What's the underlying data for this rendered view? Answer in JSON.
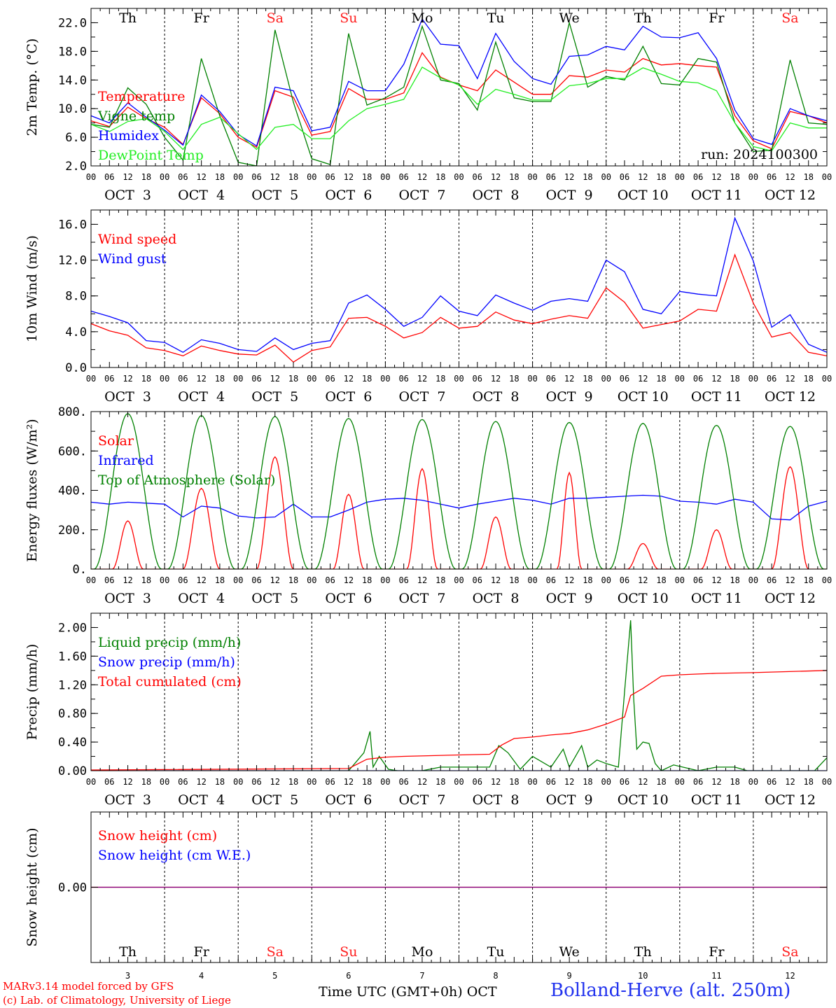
{
  "station": "Bolland-Herve (alt. 250m)",
  "credits": [
    "MARv3.14 model forced by GFS",
    "(c) Lab. of Climatology, University of Liege"
  ],
  "x_axis_title": "Time UTC (GMT+0h)",
  "month": "OCT",
  "run": "run: 2024100300",
  "days": [
    {
      "dow": "Th",
      "date": "OCT  3",
      "num": "3",
      "weekend": false
    },
    {
      "dow": "Fr",
      "date": "OCT  4",
      "num": "4",
      "weekend": false
    },
    {
      "dow": "Sa",
      "date": "OCT  5",
      "num": "5",
      "weekend": true
    },
    {
      "dow": "Su",
      "date": "OCT  6",
      "num": "6",
      "weekend": true
    },
    {
      "dow": "Mo",
      "date": "OCT  7",
      "num": "7",
      "weekend": false
    },
    {
      "dow": "Tu",
      "date": "OCT  8",
      "num": "8",
      "weekend": false
    },
    {
      "dow": "We",
      "date": "OCT  9",
      "num": "9",
      "weekend": false
    },
    {
      "dow": "Th",
      "date": "OCT 10",
      "num": "10",
      "weekend": false
    },
    {
      "dow": "Fr",
      "date": "OCT 11",
      "num": "11",
      "weekend": false
    },
    {
      "dow": "Sa",
      "date": "OCT 12",
      "num": "12",
      "weekend": true
    }
  ],
  "hour_ticks": [
    "00",
    "06",
    "12",
    "18"
  ],
  "colors": {
    "red": "#ff0000",
    "blue": "#0000ff",
    "dark_green": "#008000",
    "light_green": "#22ee22",
    "purple": "#800080",
    "weekend": "#ff2020"
  },
  "chart_data": [
    {
      "type": "line",
      "ylabel": "2m Temp. (°C)",
      "ylim": [
        2,
        24
      ],
      "yticks": [
        2,
        6,
        10,
        14,
        18,
        22
      ],
      "ytick_labels": [
        "2.0",
        "6.0",
        "10.0",
        "14.0",
        "18.0",
        "22.0"
      ],
      "x_hours": [
        0,
        6,
        12,
        18,
        24,
        30,
        36,
        42,
        48,
        54,
        60,
        66,
        72,
        78,
        84,
        90,
        96,
        102,
        108,
        114,
        120,
        126,
        132,
        138,
        144,
        150,
        156,
        162,
        168,
        174,
        180,
        186,
        192,
        198,
        204,
        210,
        216,
        222,
        228,
        234,
        240
      ],
      "series": [
        {
          "name": "Temperature",
          "color": "#ff0000",
          "values": [
            8.3,
            7.5,
            10.2,
            8.6,
            7.4,
            5.0,
            11.5,
            9.3,
            6.0,
            4.6,
            12.5,
            11.6,
            6.3,
            6.8,
            12.8,
            11.3,
            11.3,
            12.2,
            17.8,
            14.4,
            13.3,
            12.5,
            15.4,
            13.7,
            12.0,
            12.0,
            14.6,
            14.4,
            15.4,
            15.1,
            17.0,
            16.1,
            16.3,
            16.0,
            15.8,
            9.0,
            5.5,
            4.4,
            9.6,
            9.0,
            8.0
          ]
        },
        {
          "name": "Vigne temp",
          "color": "#008000",
          "values": [
            7.8,
            7.4,
            12.9,
            10.6,
            6.0,
            2.8,
            17.0,
            9.0,
            2.5,
            2.0,
            21.0,
            10.9,
            3.0,
            2.2,
            20.5,
            10.5,
            11.5,
            13.0,
            21.5,
            14.0,
            13.5,
            9.8,
            19.3,
            11.5,
            11.0,
            11.0,
            22.0,
            13.0,
            14.5,
            14.0,
            18.7,
            13.5,
            13.3,
            17.0,
            16.5,
            8.0,
            4.0,
            4.2,
            16.8,
            8.0,
            7.8
          ]
        },
        {
          "name": "Humidex",
          "color": "#0000ff",
          "values": [
            9.0,
            8.0,
            10.8,
            8.8,
            7.0,
            4.9,
            11.9,
            9.6,
            6.4,
            4.8,
            13.0,
            12.5,
            6.9,
            7.4,
            13.8,
            12.5,
            12.5,
            16.2,
            22.5,
            19.0,
            18.8,
            14.2,
            20.5,
            16.6,
            14.2,
            13.4,
            17.3,
            17.5,
            18.7,
            18.2,
            21.5,
            20.0,
            19.9,
            20.6,
            17.0,
            9.8,
            5.8,
            5.0,
            10.0,
            9.0,
            8.3
          ]
        },
        {
          "name": "DewPoint Temp",
          "color": "#22ee22",
          "values": [
            7.8,
            6.8,
            8.2,
            8.6,
            6.8,
            4.3,
            7.8,
            8.8,
            6.5,
            4.3,
            7.4,
            7.8,
            5.8,
            5.8,
            8.3,
            10.0,
            10.6,
            11.3,
            15.8,
            14.3,
            13.3,
            10.6,
            12.7,
            12.0,
            11.2,
            11.2,
            13.2,
            13.5,
            14.2,
            14.2,
            15.7,
            14.8,
            13.8,
            13.6,
            12.5,
            8.0,
            4.7,
            4.1,
            8.0,
            7.3,
            7.3
          ]
        }
      ]
    },
    {
      "type": "line",
      "ylabel": "10m Wind (m/s)",
      "ylim": [
        0,
        17.6
      ],
      "yticks": [
        0,
        4,
        8,
        12,
        16
      ],
      "ytick_labels": [
        "0.0",
        "4.0",
        "8.0",
        "12.0",
        "16.0"
      ],
      "ref_line": 5,
      "x_hours": [
        0,
        6,
        12,
        18,
        24,
        30,
        36,
        42,
        48,
        54,
        60,
        66,
        72,
        78,
        84,
        90,
        96,
        102,
        108,
        114,
        120,
        126,
        132,
        138,
        144,
        150,
        156,
        162,
        168,
        174,
        180,
        186,
        192,
        198,
        204,
        210,
        216,
        222,
        228,
        234,
        240
      ],
      "series": [
        {
          "name": "Wind speed",
          "color": "#ff0000",
          "values": [
            4.9,
            4.1,
            3.6,
            2.2,
            1.9,
            1.3,
            2.4,
            1.9,
            1.5,
            1.4,
            2.5,
            0.6,
            1.9,
            2.3,
            5.5,
            5.6,
            4.6,
            3.3,
            3.9,
            5.6,
            4.4,
            4.6,
            6.2,
            5.3,
            4.9,
            5.4,
            5.8,
            5.5,
            8.9,
            7.3,
            4.4,
            4.8,
            5.2,
            6.5,
            6.3,
            12.6,
            7.2,
            3.4,
            3.9,
            1.7,
            1.3
          ]
        },
        {
          "name": "Wind gust",
          "color": "#0000ff",
          "values": [
            6.3,
            5.7,
            5.0,
            3.0,
            2.8,
            1.7,
            3.1,
            2.7,
            2.0,
            1.8,
            3.3,
            2.0,
            2.7,
            3.0,
            7.2,
            8.1,
            6.5,
            4.6,
            5.6,
            8.0,
            6.3,
            5.8,
            8.1,
            7.2,
            6.4,
            7.4,
            7.7,
            7.4,
            12.0,
            10.7,
            6.5,
            6.0,
            8.5,
            8.2,
            8.0,
            16.7,
            11.9,
            4.5,
            5.9,
            2.6,
            1.7
          ]
        }
      ]
    },
    {
      "type": "line",
      "ylabel": "Energy fluxes (W/m²)",
      "ylim": [
        0,
        800
      ],
      "yticks": [
        0,
        200,
        400,
        600,
        800
      ],
      "ytick_labels": [
        "0.",
        "200.",
        "400.",
        "600.",
        "800."
      ],
      "series": [
        {
          "name": "Solar",
          "color": "#ff0000",
          "peaks": [
            {
              "hour": 12,
              "value": 245,
              "width": 5
            },
            {
              "hour": 36,
              "value": 410,
              "width": 6
            },
            {
              "hour": 60,
              "value": 570,
              "width": 6
            },
            {
              "hour": 84,
              "value": 380,
              "width": 5
            },
            {
              "hour": 108,
              "value": 510,
              "width": 5
            },
            {
              "hour": 132,
              "value": 265,
              "width": 5
            },
            {
              "hour": 156,
              "value": 490,
              "width": 4
            },
            {
              "hour": 180,
              "value": 130,
              "width": 5
            },
            {
              "hour": 204,
              "value": 200,
              "width": 5
            },
            {
              "hour": 228,
              "value": 520,
              "width": 6
            }
          ]
        },
        {
          "name": "Infrared",
          "color": "#0000ff",
          "x_hours": [
            0,
            6,
            12,
            18,
            24,
            30,
            36,
            42,
            48,
            54,
            60,
            66,
            72,
            78,
            84,
            90,
            96,
            102,
            108,
            114,
            120,
            126,
            132,
            138,
            144,
            150,
            156,
            162,
            168,
            174,
            180,
            186,
            192,
            198,
            204,
            210,
            216,
            222,
            228,
            234,
            240
          ],
          "values": [
            340,
            330,
            340,
            335,
            330,
            265,
            320,
            310,
            270,
            260,
            265,
            330,
            265,
            265,
            300,
            340,
            355,
            360,
            350,
            330,
            310,
            330,
            345,
            360,
            350,
            330,
            360,
            360,
            365,
            370,
            375,
            370,
            345,
            340,
            330,
            355,
            340,
            255,
            250,
            320,
            345
          ]
        },
        {
          "name": "Top of Atmosphere (Solar)",
          "color": "#008000",
          "peaks": [
            {
              "hour": 12,
              "value": 790,
              "width": 11
            },
            {
              "hour": 36,
              "value": 780,
              "width": 11
            },
            {
              "hour": 60,
              "value": 775,
              "width": 11
            },
            {
              "hour": 84,
              "value": 765,
              "width": 11
            },
            {
              "hour": 108,
              "value": 760,
              "width": 11
            },
            {
              "hour": 132,
              "value": 750,
              "width": 11
            },
            {
              "hour": 156,
              "value": 745,
              "width": 11
            },
            {
              "hour": 180,
              "value": 740,
              "width": 11
            },
            {
              "hour": 204,
              "value": 730,
              "width": 11
            },
            {
              "hour": 228,
              "value": 725,
              "width": 11
            }
          ]
        }
      ]
    },
    {
      "type": "line",
      "ylabel": "Precip (mm/h)",
      "ylim": [
        0,
        2.2
      ],
      "yticks": [
        0,
        0.4,
        0.8,
        1.2,
        1.6,
        2.0
      ],
      "ytick_labels": [
        "0.00",
        "0.40",
        "0.80",
        "1.20",
        "1.60",
        "2.00"
      ],
      "series": [
        {
          "name": "Liquid precip (mm/h)",
          "color": "#008000",
          "x_hours": [
            0,
            84,
            89,
            91,
            92,
            94,
            97,
            100,
            108,
            114,
            130,
            133,
            136,
            140,
            144,
            150,
            154,
            156,
            160,
            162,
            165,
            168,
            172,
            174,
            176,
            177,
            178,
            180,
            182,
            184,
            186,
            190,
            198,
            204,
            210,
            214,
            236,
            240
          ],
          "values": [
            0,
            0,
            0.25,
            0.55,
            0.05,
            0.2,
            0.02,
            0,
            0,
            0.05,
            0.05,
            0.35,
            0.25,
            0.02,
            0.2,
            0.05,
            0.3,
            0.05,
            0.35,
            0.05,
            0.15,
            0.1,
            0.05,
            1.1,
            2.1,
            1.0,
            0.3,
            0.4,
            0.38,
            0.1,
            0,
            0.08,
            0,
            0.05,
            0.05,
            0,
            0,
            0.18
          ]
        },
        {
          "name": "Snow precip (mm/h)",
          "color": "#0000ff",
          "x_hours": [
            0,
            240
          ],
          "values": [
            0,
            0
          ]
        },
        {
          "name": "Total cumulated (cm)",
          "color": "#ff0000",
          "x_hours": [
            0,
            84,
            90,
            96,
            102,
            120,
            130,
            134,
            138,
            144,
            150,
            156,
            162,
            168,
            174,
            176,
            180,
            186,
            192,
            198,
            204,
            216,
            240
          ],
          "values": [
            0.01,
            0.03,
            0.16,
            0.19,
            0.2,
            0.22,
            0.23,
            0.36,
            0.45,
            0.47,
            0.5,
            0.52,
            0.57,
            0.65,
            0.75,
            1.05,
            1.15,
            1.32,
            1.34,
            1.35,
            1.36,
            1.37,
            1.4
          ]
        }
      ]
    },
    {
      "type": "line",
      "ylabel": "Snow height (cm)",
      "ylim": [
        -1,
        1
      ],
      "yticks": [
        0
      ],
      "ytick_labels": [
        "0.00"
      ],
      "series": [
        {
          "name": "Snow height (cm)",
          "color": "#ff0000",
          "x_hours": [
            0,
            240
          ],
          "values": [
            0,
            0
          ]
        },
        {
          "name": "Snow height (cm W.E.)",
          "color": "#0000ff",
          "x_hours": [
            0,
            240
          ],
          "values": [
            0,
            0
          ]
        }
      ]
    }
  ]
}
